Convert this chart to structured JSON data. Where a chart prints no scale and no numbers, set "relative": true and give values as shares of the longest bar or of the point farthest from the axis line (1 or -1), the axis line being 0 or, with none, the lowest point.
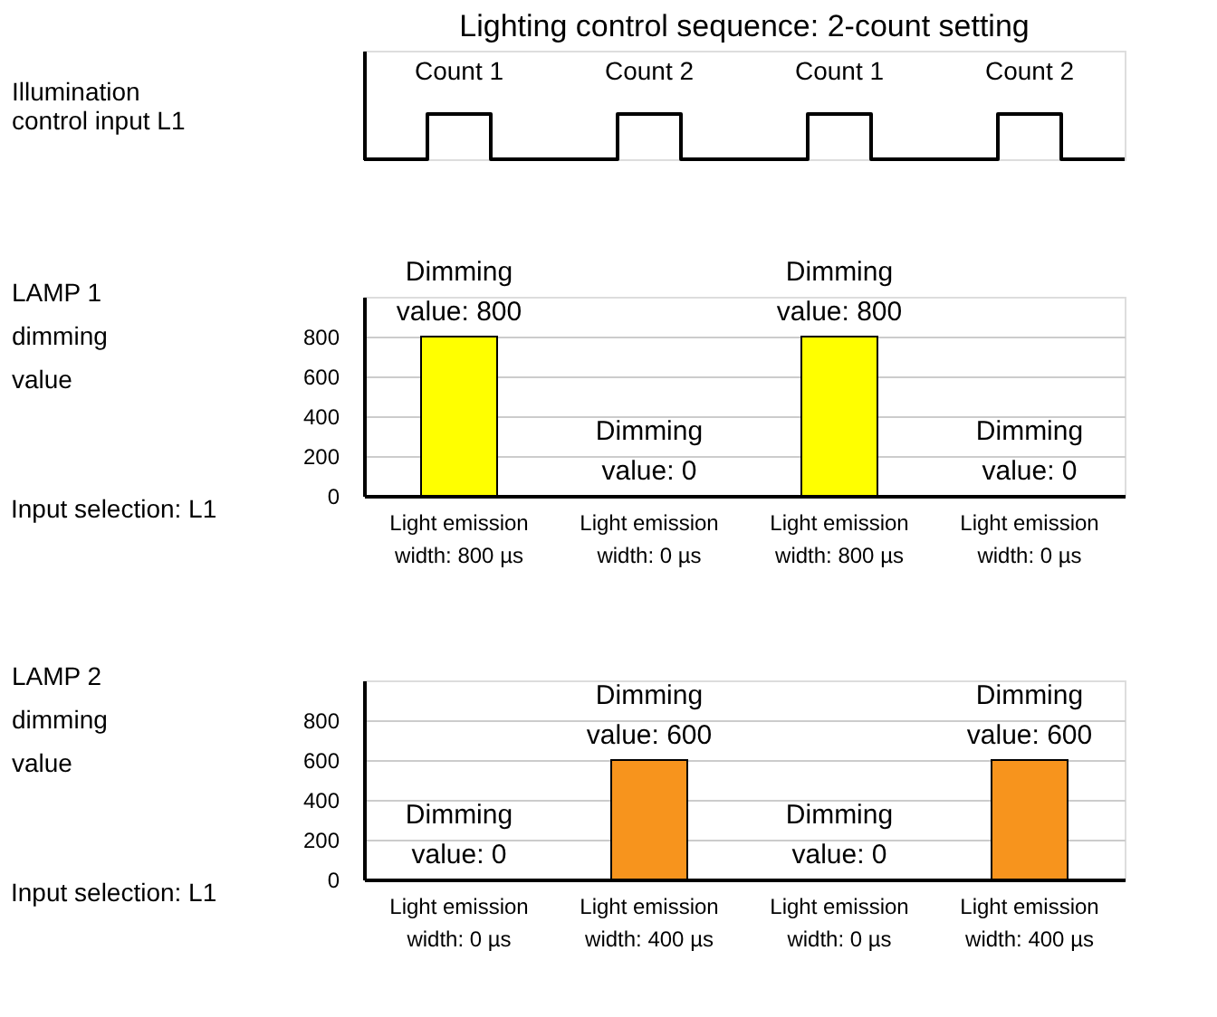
{
  "chart_data": [
    {
      "type": "step",
      "title": "Lighting control sequence: 2-count setting",
      "ylabel": "Illumination control input L1",
      "relative": true,
      "annotations": [
        "Count 1",
        "Count 2",
        "Count 1",
        "Count 2"
      ],
      "categories": [
        null,
        null,
        null,
        null,
        null,
        null,
        null,
        null,
        null,
        null,
        null,
        null,
        null
      ],
      "values": [
        0,
        1,
        0,
        0,
        1,
        0,
        0,
        1,
        0,
        0,
        1,
        0,
        0
      ],
      "color": "#000000"
    },
    {
      "type": "bar",
      "ylabel": "LAMP 1 dimming value",
      "annotations": [
        "Input selection: L1"
      ],
      "categories": [
        "Light emission width: 800 µs",
        "Light emission width: 0 µs",
        "Light emission width: 800 µs",
        "Light emission width: 0 µs"
      ],
      "values": [
        800,
        0,
        800,
        0
      ],
      "value_labels": [
        "Dimming value: 800",
        "Dimming value: 0",
        "Dimming value: 800",
        "Dimming value: 0"
      ],
      "colors": [
        "#ffff00",
        "#ffff00",
        "#ffff00",
        "#ffff00"
      ],
      "ylim": [
        0,
        1000
      ],
      "yticks": [
        0,
        200,
        400,
        600,
        800
      ],
      "grid": "y"
    },
    {
      "type": "bar",
      "ylabel": "LAMP 2 dimming value",
      "annotations": [
        "Input selection: L1"
      ],
      "categories": [
        "Light emission width: 0 µs",
        "Light emission width: 400 µs",
        "Light emission width: 0 µs",
        "Light emission width: 400 µs"
      ],
      "values": [
        0,
        600,
        0,
        600
      ],
      "value_labels": [
        "Dimming value: 0",
        "Dimming value: 600",
        "Dimming value: 0",
        "Dimming value: 600"
      ],
      "colors": [
        "#f7941d",
        "#f7941d",
        "#f7941d",
        "#f7941d"
      ],
      "ylim": [
        0,
        1000
      ],
      "yticks": [
        0,
        200,
        400,
        600,
        800
      ],
      "grid": "y"
    }
  ]
}
